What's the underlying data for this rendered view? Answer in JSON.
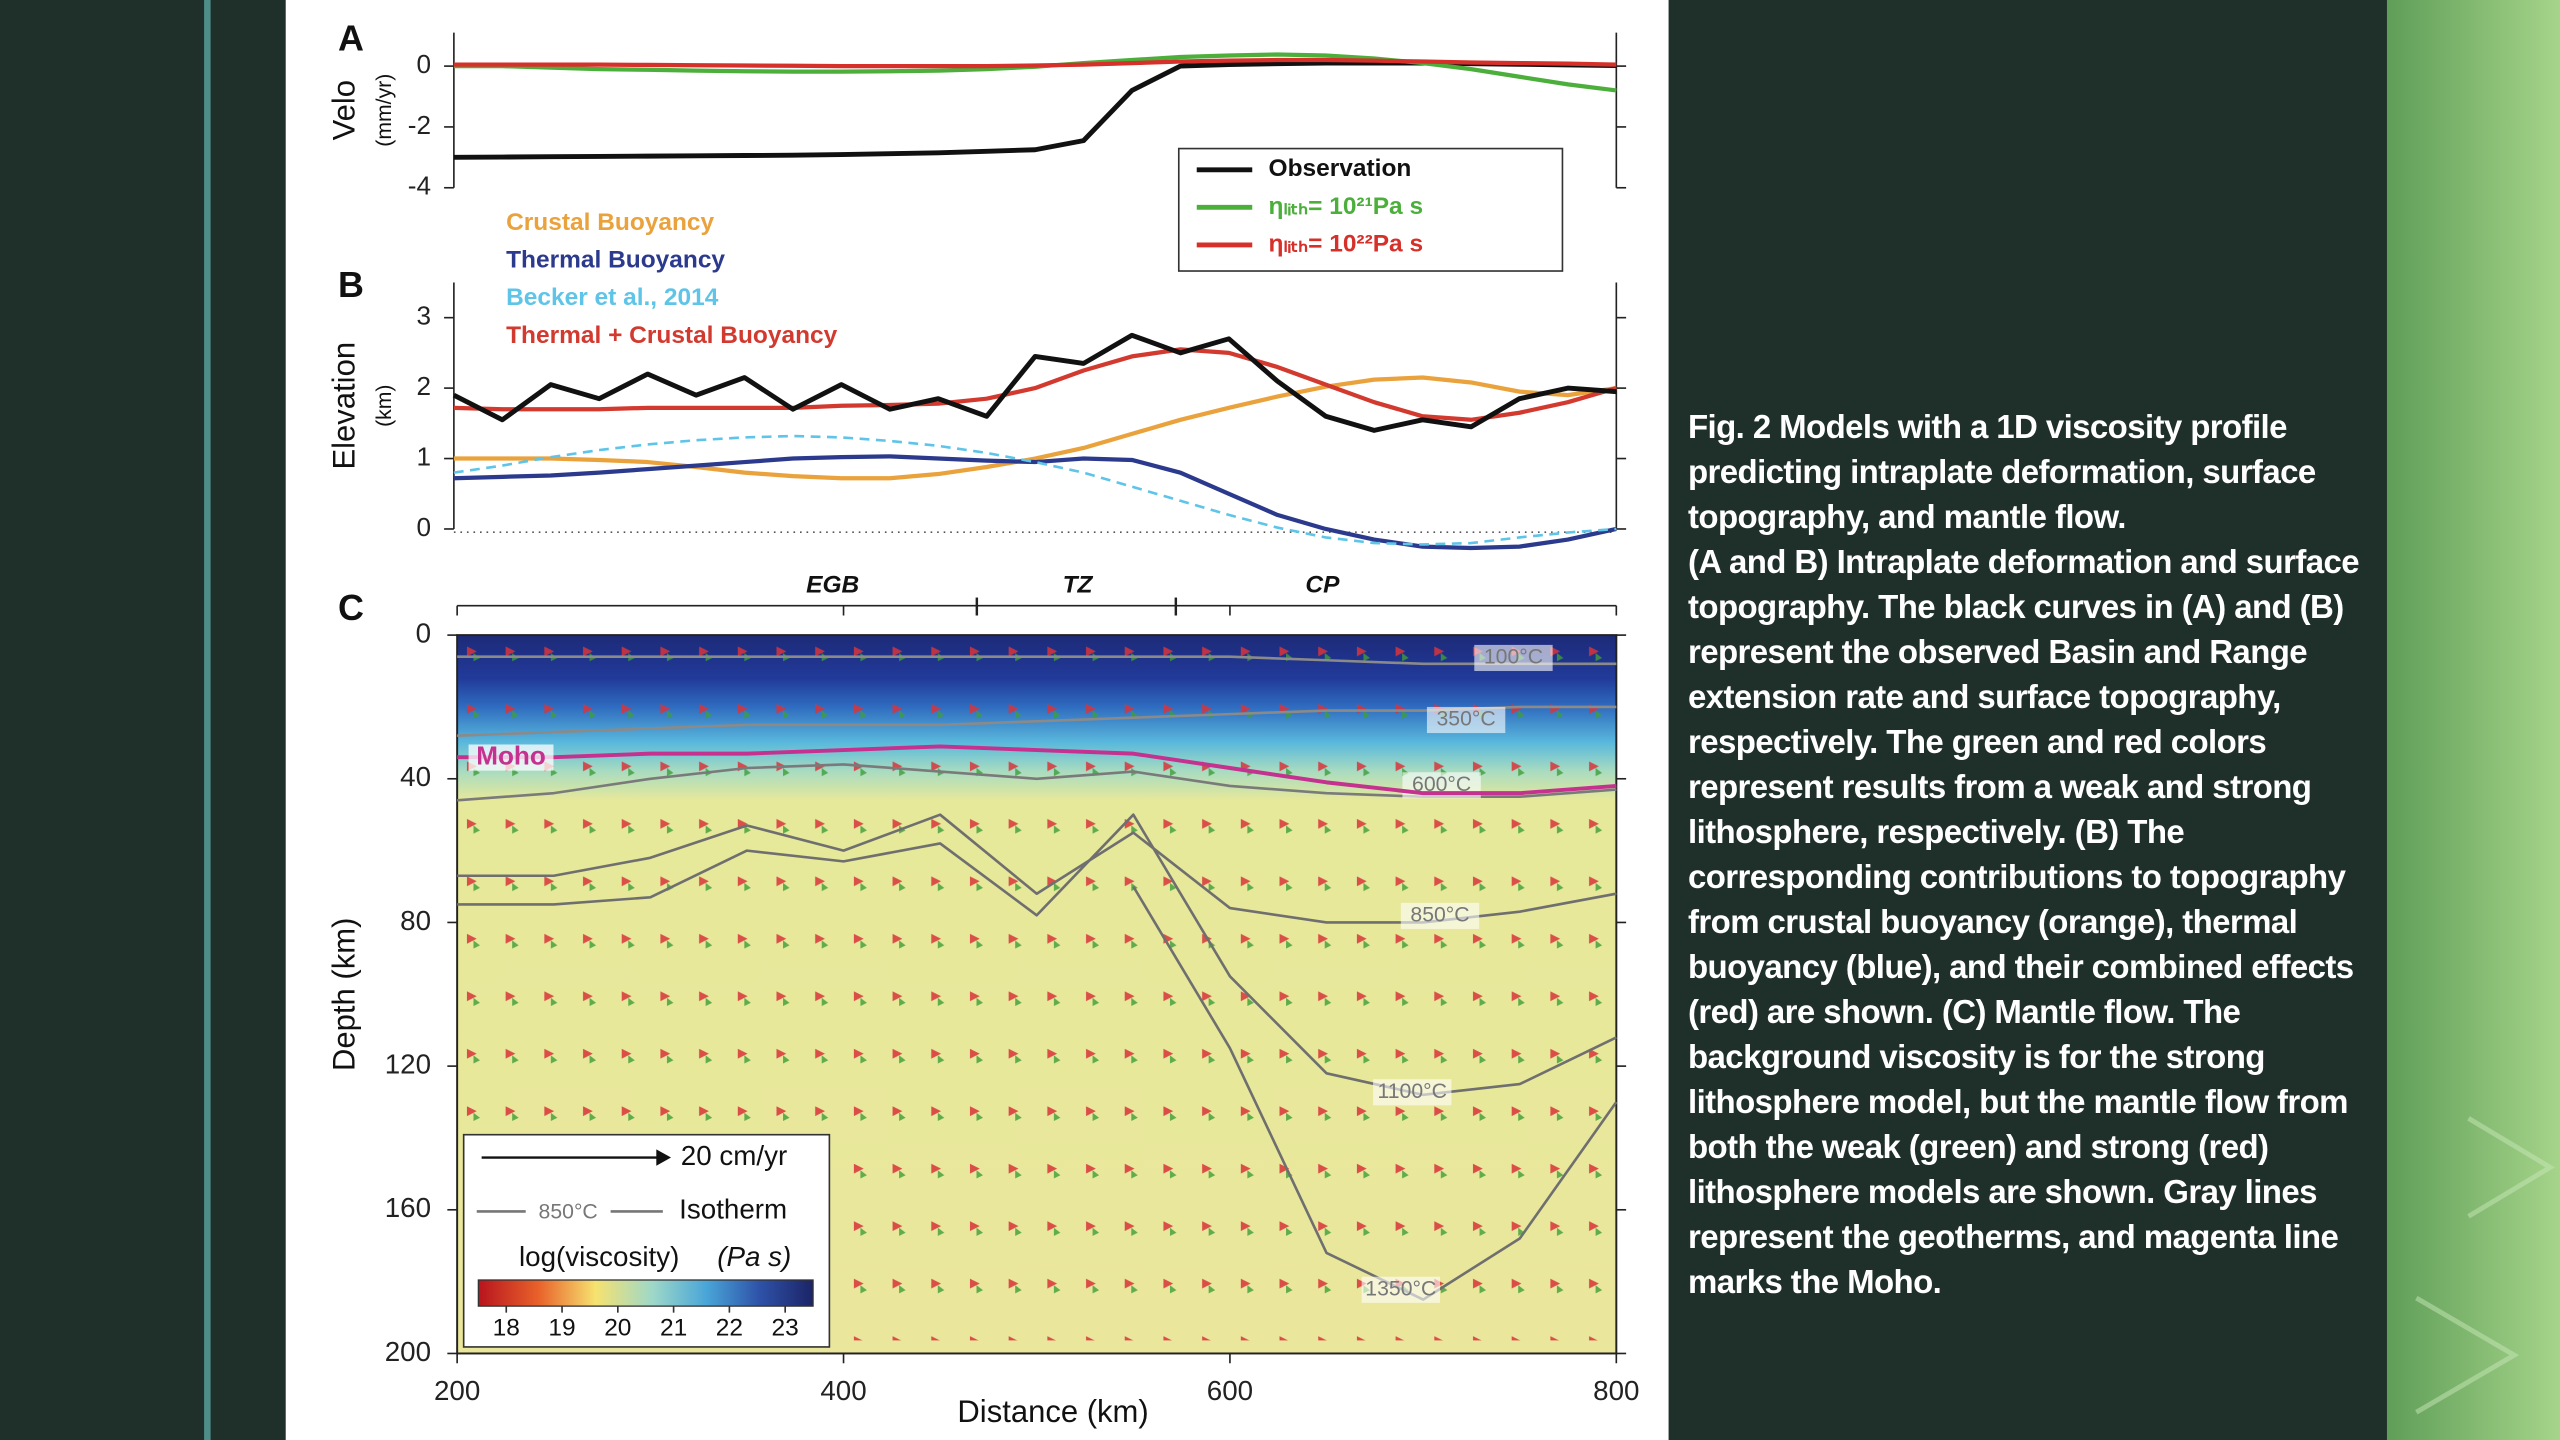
{
  "chart_data": [
    {
      "type": "line",
      "panel_label": "A",
      "ylabel": "Velo",
      "ylabel_unit": "(mm/yr)",
      "xlim": [
        200,
        800
      ],
      "ylim": [
        -4,
        1.1
      ],
      "yticks": [
        0,
        -2,
        -4
      ],
      "legend": "lower right",
      "x": [
        200,
        225,
        250,
        275,
        300,
        325,
        350,
        375,
        400,
        425,
        450,
        475,
        500,
        525,
        550,
        575,
        600,
        625,
        650,
        675,
        700,
        725,
        750,
        775,
        800
      ],
      "series": [
        {
          "name": "Observation",
          "color": "#111111",
          "values": [
            -3.0,
            -2.99,
            -2.98,
            -2.97,
            -2.96,
            -2.95,
            -2.94,
            -2.93,
            -2.91,
            -2.88,
            -2.85,
            -2.8,
            -2.75,
            -2.45,
            -0.8,
            0,
            0.05,
            0.08,
            0.1,
            0.1,
            0.1,
            0.08,
            0.06,
            0.04,
            0.02
          ]
        },
        {
          "name": "ηₗᵢₜₕ= 10²¹Pa s",
          "color": "#4caf3c",
          "values": [
            0,
            0,
            -0.05,
            -0.1,
            -0.12,
            -0.15,
            -0.17,
            -0.18,
            -0.18,
            -0.17,
            -0.15,
            -0.1,
            -0.02,
            0.1,
            0.2,
            0.3,
            0.35,
            0.38,
            0.35,
            0.25,
            0.1,
            -0.1,
            -0.35,
            -0.6,
            -0.8
          ]
        },
        {
          "name": "ηₗᵢₜₕ= 10²²Pa s",
          "color": "#d6302a",
          "values": [
            0.05,
            0.05,
            0.05,
            0.05,
            0.04,
            0.03,
            0.02,
            0.01,
            0,
            0,
            0,
            0,
            0.02,
            0.05,
            0.1,
            0.15,
            0.18,
            0.2,
            0.2,
            0.18,
            0.15,
            0.12,
            0.1,
            0.08,
            0.05
          ]
        }
      ]
    },
    {
      "type": "line",
      "panel_label": "B",
      "ylabel": "Elevation",
      "ylabel_unit": "(km)",
      "xlim": [
        200,
        800
      ],
      "ylim": [
        0,
        3.5
      ],
      "yticks": [
        0,
        1,
        2,
        3
      ],
      "legend": "upper left",
      "x": [
        200,
        225,
        250,
        275,
        300,
        325,
        350,
        375,
        400,
        425,
        450,
        475,
        500,
        525,
        550,
        575,
        600,
        625,
        650,
        675,
        700,
        725,
        750,
        775,
        800
      ],
      "series": [
        {
          "name": "Crustal Buoyancy",
          "color": "#eaa23c",
          "values": [
            1.0,
            1.0,
            1.0,
            0.98,
            0.95,
            0.88,
            0.8,
            0.75,
            0.72,
            0.72,
            0.78,
            0.88,
            1.0,
            1.15,
            1.35,
            1.55,
            1.72,
            1.88,
            2.02,
            2.12,
            2.15,
            2.08,
            1.95,
            1.9,
            2.0
          ]
        },
        {
          "name": "Thermal Buoyancy",
          "color": "#2b3a8c",
          "values": [
            0.72,
            0.74,
            0.76,
            0.8,
            0.85,
            0.9,
            0.95,
            1.0,
            1.02,
            1.03,
            1.0,
            0.97,
            0.95,
            1.0,
            0.98,
            0.8,
            0.5,
            0.2,
            0.0,
            -0.15,
            -0.25,
            -0.27,
            -0.25,
            -0.15,
            0.0
          ]
        },
        {
          "name": "Becker et al., 2014",
          "color": "#5ec4e8",
          "dashed": true,
          "values": [
            0.8,
            0.9,
            1.02,
            1.12,
            1.2,
            1.26,
            1.3,
            1.32,
            1.3,
            1.25,
            1.18,
            1.08,
            0.95,
            0.8,
            0.6,
            0.4,
            0.2,
            0.02,
            -0.12,
            -0.2,
            -0.22,
            -0.2,
            -0.12,
            -0.05,
            0.0
          ]
        },
        {
          "name": "Thermal + Crustal Buoyancy",
          "color": "#d23a2f",
          "values": [
            1.72,
            1.7,
            1.7,
            1.7,
            1.72,
            1.72,
            1.72,
            1.72,
            1.75,
            1.76,
            1.78,
            1.85,
            2.0,
            2.25,
            2.45,
            2.55,
            2.5,
            2.3,
            2.05,
            1.8,
            1.6,
            1.55,
            1.65,
            1.8,
            2.0
          ]
        },
        {
          "name": "Observation",
          "color": "#111111",
          "hide_legend": true,
          "values": [
            1.9,
            1.55,
            2.05,
            1.85,
            2.2,
            1.9,
            2.15,
            1.7,
            2.05,
            1.7,
            1.85,
            1.6,
            2.45,
            2.35,
            2.75,
            2.5,
            2.7,
            2.1,
            1.6,
            1.4,
            1.55,
            1.45,
            1.85,
            2.0,
            1.95
          ]
        }
      ]
    },
    {
      "type": "contour",
      "panel_label": "C",
      "ylabel": "Depth (km)",
      "xlabel": "Distance (km)",
      "xlim": [
        200,
        800
      ],
      "ylim": [
        0,
        200
      ],
      "y_inverted": true,
      "xticks": [
        200,
        400,
        600,
        800
      ],
      "yticks": [
        0,
        40,
        80,
        120,
        160,
        200
      ],
      "regions": [
        "EGB",
        "TZ",
        "CP"
      ],
      "region_bounds": [
        469,
        572
      ],
      "x": [
        200,
        250,
        300,
        350,
        400,
        450,
        500,
        550,
        600,
        650,
        700,
        750,
        800
      ],
      "series": [
        {
          "name": "100°C",
          "color": "#8a8a8a",
          "values": [
            6,
            6,
            6,
            6,
            6,
            6,
            6,
            6,
            6,
            7,
            8,
            8,
            8
          ]
        },
        {
          "name": "350°C",
          "color": "#8a8a8a",
          "values": [
            28,
            27,
            26,
            25,
            25,
            25,
            24,
            23,
            22,
            21,
            21,
            20,
            20
          ]
        },
        {
          "name": "600°C",
          "color": "#7a7a7a",
          "values": [
            46,
            44,
            40,
            37,
            36,
            38,
            40,
            38,
            42,
            44,
            45,
            45,
            43
          ]
        },
        {
          "name": "850°C",
          "color": "#6f6f6f",
          "values": [
            67,
            67,
            62,
            53,
            60,
            50,
            72,
            55,
            76,
            80,
            80,
            77,
            72
          ]
        },
        {
          "name": "1100°C",
          "color": "#6f6f6f",
          "values": [
            75,
            75,
            73,
            60,
            63,
            58,
            78,
            50,
            95,
            122,
            128,
            125,
            112
          ]
        },
        {
          "name": "1350°C",
          "color": "#6f6f6f",
          "values": [
            null,
            null,
            null,
            null,
            null,
            null,
            null,
            70,
            115,
            172,
            185,
            168,
            130
          ]
        },
        {
          "name": "Moho",
          "color": "#c4318e",
          "values": [
            34,
            34,
            33,
            33,
            32,
            31,
            32,
            33,
            37,
            41,
            44,
            44,
            42
          ]
        }
      ],
      "vector_scale_label": "20 cm/yr",
      "isotherm_sample": "850°C",
      "isotherm_label": "Isotherm",
      "colorbar": {
        "label": "log(viscosity)",
        "unit": "(Pa s)",
        "lim": [
          17.5,
          23.5
        ],
        "ticks": [
          18,
          19,
          20,
          21,
          22,
          23
        ]
      }
    }
  ],
  "caption": [
    "Fig. 2 Models with a 1D viscosity profile predicting intraplate deformation, surface topography, and mantle flow.",
    "(A and B) Intraplate deformation and surface topography. The black curves in (A) and (B) represent the observed Basin and Range extension rate and surface topography, respectively. The green and red colors represent results from a weak and strong lithosphere, respectively. (B) The corresponding contributions to topography from crustal buoyancy (orange), thermal buoyancy (blue), and their combined effects (red) are shown. (C) Mantle flow. The background viscosity is for the strong lithosphere model, but the mantle flow from both the weak (green) and strong (red) lithosphere models are shown. Gray lines represent the geotherms, and magenta line marks the Moho."
  ]
}
